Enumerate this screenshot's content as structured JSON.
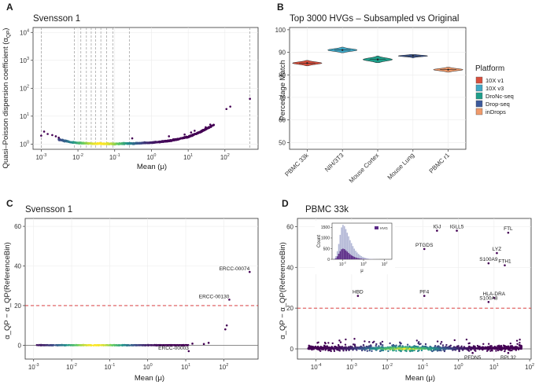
{
  "colors": {
    "grid": "#ebebeb",
    "vline": "#9a9a9a",
    "threshold": "#d62728",
    "viridis": [
      "#440154",
      "#3b528b",
      "#21918c",
      "#5ec962",
      "#fde725"
    ]
  },
  "chart_data": [
    {
      "id": "A",
      "letter": "A",
      "type": "scatter",
      "title": "Svensson 1",
      "xlabel": "Mean (μ)",
      "ylabel": "Quasi-Poisson dispersion coefficient (α_QP)",
      "ylabel_base": "Quasi–Poisson dispersion coefficient (α",
      "ylabel_sub": "QP",
      "ylabel_end": ")",
      "xscale": "log10",
      "yscale": "log10",
      "xlim": [
        0.0006,
        800
      ],
      "ylim": [
        0.65,
        15000
      ],
      "xticks": [
        0.001,
        0.01,
        0.1,
        1,
        10,
        100
      ],
      "xtick_labels": [
        "10",
        "10",
        "10",
        "10",
        "10",
        "10"
      ],
      "xtick_exponents": [
        "-3",
        "-2",
        "-1",
        "0",
        "1",
        "2"
      ],
      "yticks": [
        1,
        10,
        100,
        1000,
        10000
      ],
      "ytick_labels": [
        "10",
        "10",
        "10",
        "10",
        "10"
      ],
      "ytick_exponents": [
        "0",
        "1",
        "2",
        "3",
        "4"
      ],
      "vertical_bin_lines": [
        0.001,
        0.008,
        0.012,
        0.017,
        0.023,
        0.03,
        0.042,
        0.06,
        0.09,
        0.25,
        480
      ],
      "curve_points": [
        [
          0.003,
          1.45
        ],
        [
          0.006,
          1.2
        ],
        [
          0.01,
          1.1
        ],
        [
          0.03,
          1.03
        ],
        [
          0.1,
          1.02
        ],
        [
          0.3,
          1.05
        ],
        [
          1,
          1.12
        ],
        [
          3,
          1.3
        ],
        [
          10,
          1.8
        ],
        [
          20,
          2.6
        ],
        [
          50,
          4.8
        ]
      ],
      "outlier_points": [
        [
          0.001,
          2.0
        ],
        [
          0.0012,
          2.8
        ],
        [
          0.0015,
          2.3
        ],
        [
          0.002,
          2.1
        ],
        [
          0.0025,
          1.9
        ],
        [
          0.003,
          1.7
        ],
        [
          0.3,
          1.6
        ],
        [
          3,
          1.9
        ],
        [
          8,
          2.2
        ],
        [
          12,
          2.6
        ],
        [
          15,
          3.0
        ],
        [
          25,
          3.2
        ],
        [
          30,
          4.0
        ],
        [
          40,
          5.0
        ],
        [
          110,
          18
        ],
        [
          140,
          22
        ],
        [
          480,
          42
        ]
      ]
    },
    {
      "id": "B",
      "letter": "B",
      "type": "violin",
      "title": "Top 3000 HVGs – Subsampled vs Original",
      "xlabel": "",
      "ylabel": "Percentage Match",
      "ylim": [
        47,
        101
      ],
      "yticks": [
        50,
        60,
        70,
        80,
        90,
        100
      ],
      "categories": [
        "PBMC 33k",
        "NIH/3T3",
        "Mouse Cortex",
        "Mouse Lung",
        "PBMC r1"
      ],
      "platform_of_category": [
        "10X v1",
        "10X v3",
        "DroNc-seq",
        "Drop-seq",
        "inDrops"
      ],
      "medians": [
        85.2,
        91.0,
        86.8,
        88.4,
        82.3
      ],
      "ranges": [
        [
          84.0,
          86.4
        ],
        [
          89.8,
          92.3
        ],
        [
          85.4,
          88.4
        ],
        [
          87.5,
          89.0
        ],
        [
          81.2,
          83.4
        ]
      ],
      "legend_title": "Platform",
      "legend_position": "right",
      "legend": [
        {
          "label": "10X v1",
          "color": "#d94f3d"
        },
        {
          "label": "10X v3",
          "color": "#3fa8c7"
        },
        {
          "label": "DroNc-seq",
          "color": "#1f9e8a"
        },
        {
          "label": "Drop-seq",
          "color": "#3c5a9c"
        },
        {
          "label": "inDrops",
          "color": "#f09a6b"
        }
      ]
    },
    {
      "id": "C",
      "letter": "C",
      "type": "scatter",
      "title": "Svensson 1",
      "xlabel": "Mean (μ)",
      "ylabel": "α_QP − α_QP(ReferenceBin)",
      "xscale": "log10",
      "xlim": [
        0.0006,
        800
      ],
      "ylim": [
        -7,
        64
      ],
      "xticks": [
        0.001,
        0.01,
        0.1,
        1,
        10,
        100
      ],
      "xtick_labels": [
        "10",
        "10",
        "10",
        "10",
        "10",
        "10"
      ],
      "xtick_exponents": [
        "-3",
        "-2",
        "-1",
        "0",
        "1",
        "2"
      ],
      "yticks": [
        0,
        20,
        40,
        60
      ],
      "threshold": 20,
      "highlight_points": [
        {
          "label": "ERCC-00074",
          "x": 480,
          "y": 37
        },
        {
          "label": "ERCC-00130",
          "x": 140,
          "y": 23
        },
        {
          "label": "ERCC-00003",
          "x": 12,
          "y": -3
        }
      ],
      "other_points": [
        [
          110,
          8
        ],
        [
          120,
          10
        ],
        [
          30,
          0.6
        ],
        [
          40,
          1.2
        ],
        [
          15,
          0.8
        ]
      ]
    },
    {
      "id": "D",
      "letter": "D",
      "type": "scatter",
      "title": "PBMC 33k",
      "xlabel": "Mean (μ)",
      "ylabel": "α_QP − α_QP(ReferenceBin)",
      "xscale": "log10",
      "xlim": [
        3e-05,
        110
      ],
      "ylim": [
        -5,
        64
      ],
      "xticks": [
        0.0001,
        0.001,
        0.01,
        0.1,
        1,
        10,
        100
      ],
      "xtick_labels": [
        "10",
        "10",
        "10",
        "10",
        "10",
        "10",
        "10"
      ],
      "xtick_exponents": [
        "-4",
        "-3",
        "-2",
        "-1",
        "0",
        "1",
        "2"
      ],
      "yticks": [
        0,
        20,
        40,
        60
      ],
      "threshold": 20,
      "highlight_points": [
        {
          "label": "IGJ",
          "x": 0.25,
          "y": 58
        },
        {
          "label": "IGLL5",
          "x": 0.9,
          "y": 58
        },
        {
          "label": "FTL",
          "x": 25,
          "y": 57
        },
        {
          "label": "LYZ",
          "x": 12,
          "y": 47
        },
        {
          "label": "PTGDS",
          "x": 0.11,
          "y": 49
        },
        {
          "label": "S100A9",
          "x": 7,
          "y": 42
        },
        {
          "label": "FTH1",
          "x": 20,
          "y": 41
        },
        {
          "label": "HBD",
          "x": 0.0015,
          "y": 26
        },
        {
          "label": "PF4",
          "x": 0.11,
          "y": 26
        },
        {
          "label": "HLA-DRA",
          "x": 10,
          "y": 25
        },
        {
          "label": "S100A8",
          "x": 7,
          "y": 23
        },
        {
          "label": "PFDN5",
          "x": 2.5,
          "y": -2
        },
        {
          "label": "RPL32",
          "x": 25,
          "y": -2
        }
      ],
      "inset": {
        "legend_label": "HVG",
        "ylabel": "Count",
        "xlabel": "μ",
        "xticks": [
          0.01,
          1,
          100
        ],
        "xtick_labels": [
          "10",
          "10",
          "10"
        ],
        "xtick_exponents": [
          "-2",
          "0",
          "2"
        ],
        "xlim": [
          0.001,
          500
        ],
        "yticks": [
          0,
          500,
          1000,
          1500
        ],
        "ytick_labels": [
          "0",
          "500",
          "1000",
          "1500"
        ],
        "ylim": [
          0,
          1700
        ],
        "hist_all": [
          40,
          150,
          380,
          720,
          1150,
          1500,
          1620,
          1560,
          1420,
          1250,
          1080,
          900,
          760,
          620,
          500,
          400,
          320,
          250,
          195,
          150,
          115,
          85,
          62,
          45,
          32,
          22,
          15,
          10,
          7,
          5,
          3,
          2
        ],
        "hist_hvg": [
          10,
          50,
          140,
          260,
          380,
          470,
          500,
          480,
          420,
          360,
          300,
          240,
          190,
          150,
          115,
          88,
          66,
          50,
          38,
          28,
          20,
          14,
          10,
          7,
          5,
          3,
          2,
          1,
          1,
          0,
          0,
          0
        ]
      }
    }
  ]
}
